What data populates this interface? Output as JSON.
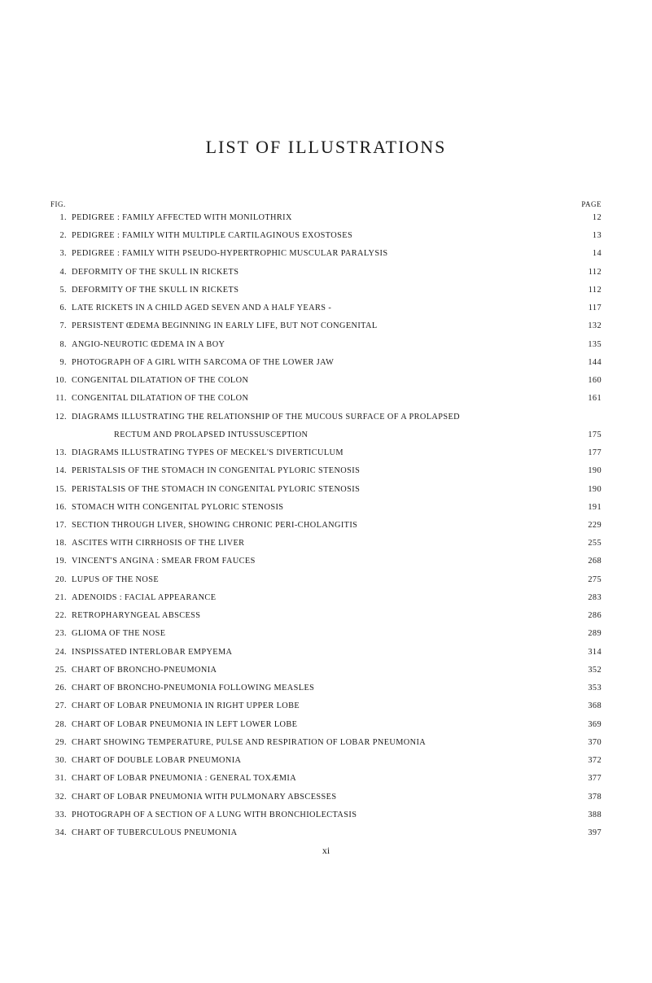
{
  "title": "LIST OF ILLUSTRATIONS",
  "figLabel": "FIG.",
  "pageLabel": "PAGE",
  "footer": "xi",
  "items": [
    {
      "n": "1.",
      "text": "PEDIGREE : FAMILY AFFECTED WITH MONILOTHRIX",
      "page": "12"
    },
    {
      "n": "2.",
      "text": "PEDIGREE : FAMILY WITH MULTIPLE CARTILAGINOUS EXOSTOSES",
      "page": "13"
    },
    {
      "n": "3.",
      "text": "PEDIGREE : FAMILY WITH PSEUDO-HYPERTROPHIC MUSCULAR PARALYSIS",
      "page": "14"
    },
    {
      "n": "4.",
      "text": "DEFORMITY OF THE SKULL IN RICKETS",
      "page": "112"
    },
    {
      "n": "5.",
      "text": "DEFORMITY OF THE SKULL IN RICKETS",
      "page": "112"
    },
    {
      "n": "6.",
      "text": "LATE RICKETS IN A CHILD AGED SEVEN AND A HALF YEARS -",
      "page": "117"
    },
    {
      "n": "7.",
      "text": "PERSISTENT ŒDEMA BEGINNING IN EARLY LIFE, BUT NOT CONGENITAL",
      "page": "132"
    },
    {
      "n": "8.",
      "text": "ANGIO-NEUROTIC ŒDEMA IN A BOY",
      "page": "135"
    },
    {
      "n": "9.",
      "text": "PHOTOGRAPH OF A GIRL WITH SARCOMA OF THE LOWER JAW",
      "page": "144"
    },
    {
      "n": "10.",
      "text": "CONGENITAL DILATATION OF THE COLON",
      "page": "160"
    },
    {
      "n": "11.",
      "text": "CONGENITAL DILATATION OF THE COLON",
      "page": "161"
    },
    {
      "n": "12.",
      "text": "DIAGRAMS ILLUSTRATING THE RELATIONSHIP OF THE MUCOUS SURFACE OF A PROLAPSED",
      "page": "",
      "cont": "RECTUM AND PROLAPSED INTUSSUSCEPTION",
      "contPage": "175"
    },
    {
      "n": "13.",
      "text": "DIAGRAMS ILLUSTRATING TYPES OF MECKEL'S DIVERTICULUM",
      "page": "177"
    },
    {
      "n": "14.",
      "text": "PERISTALSIS OF THE STOMACH IN CONGENITAL PYLORIC STENOSIS",
      "page": "190"
    },
    {
      "n": "15.",
      "text": "PERISTALSIS OF THE STOMACH IN CONGENITAL PYLORIC STENOSIS",
      "page": "190"
    },
    {
      "n": "16.",
      "text": "STOMACH WITH CONGENITAL PYLORIC STENOSIS",
      "page": "191"
    },
    {
      "n": "17.",
      "text": "SECTION THROUGH LIVER, SHOWING CHRONIC PERI-CHOLANGITIS",
      "page": "229"
    },
    {
      "n": "18.",
      "text": "ASCITES WITH CIRRHOSIS OF THE LIVER",
      "page": "255"
    },
    {
      "n": "19.",
      "text": "VINCENT'S ANGINA : SMEAR FROM FAUCES",
      "page": "268"
    },
    {
      "n": "20.",
      "text": "LUPUS OF THE NOSE",
      "page": "275"
    },
    {
      "n": "21.",
      "text": "ADENOIDS : FACIAL APPEARANCE",
      "page": "283"
    },
    {
      "n": "22.",
      "text": "RETROPHARYNGEAL ABSCESS",
      "page": "286"
    },
    {
      "n": "23.",
      "text": "GLIOMA OF THE NOSE",
      "page": "289"
    },
    {
      "n": "24.",
      "text": "INSPISSATED INTERLOBAR EMPYEMA",
      "page": "314"
    },
    {
      "n": "25.",
      "text": "CHART OF BRONCHO-PNEUMONIA",
      "page": "352"
    },
    {
      "n": "26.",
      "text": "CHART OF BRONCHO-PNEUMONIA FOLLOWING MEASLES",
      "page": "353"
    },
    {
      "n": "27.",
      "text": "CHART OF LOBAR PNEUMONIA IN RIGHT UPPER LOBE",
      "page": "368"
    },
    {
      "n": "28.",
      "text": "CHART OF LOBAR PNEUMONIA IN LEFT LOWER LOBE",
      "page": "369"
    },
    {
      "n": "29.",
      "text": "CHART SHOWING TEMPERATURE, PULSE AND RESPIRATION OF LOBAR PNEUMONIA",
      "page": "370"
    },
    {
      "n": "30.",
      "text": "CHART OF DOUBLE LOBAR PNEUMONIA",
      "page": "372"
    },
    {
      "n": "31.",
      "text": "CHART OF LOBAR PNEUMONIA : GENERAL TOXÆMIA",
      "page": "377"
    },
    {
      "n": "32.",
      "text": "CHART OF LOBAR PNEUMONIA WITH PULMONARY ABSCESSES",
      "page": "378"
    },
    {
      "n": "33.",
      "text": "PHOTOGRAPH OF A SECTION OF A LUNG WITH BRONCHIOLECTASIS",
      "page": "388"
    },
    {
      "n": "34.",
      "text": "CHART OF TUBERCULOUS PNEUMONIA",
      "page": "397"
    }
  ]
}
